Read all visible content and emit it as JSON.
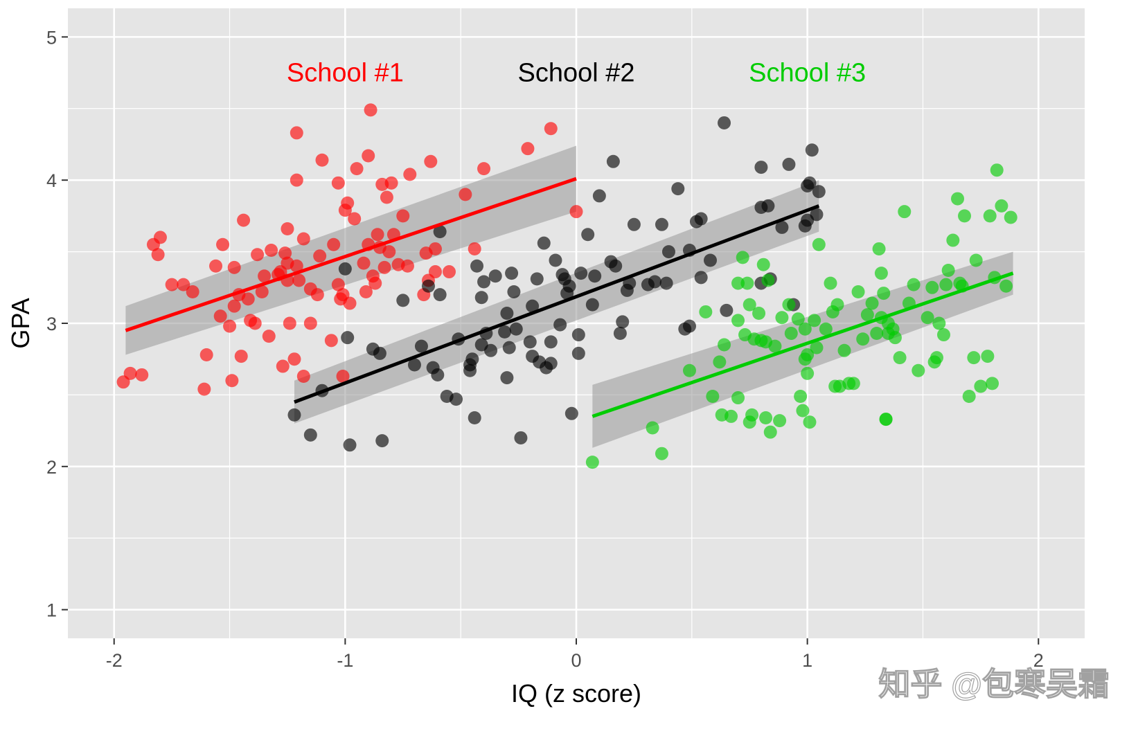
{
  "watermark": "知乎 @包寒吴霜",
  "chart_data": {
    "type": "scatter",
    "xlabel": "IQ (z score)",
    "ylabel": "GPA",
    "xlim": [
      -2.2,
      2.2
    ],
    "ylim": [
      0.8,
      5.2
    ],
    "x_ticks": [
      -2,
      -1,
      0,
      1,
      2
    ],
    "x_tick_labels": [
      "-2",
      "-1",
      "0",
      "1",
      "2"
    ],
    "y_ticks": [
      1,
      2,
      3,
      4,
      5
    ],
    "y_tick_labels": [
      "1",
      "2",
      "3",
      "4",
      "5"
    ],
    "grid": true,
    "colors": {
      "panel": "#e5e5e5",
      "grid": "#ffffff",
      "band": "#999999"
    },
    "series": [
      {
        "name": "School #1",
        "color": "#ff0000",
        "label_pos": [
          -1,
          4.69
        ],
        "fit": {
          "x": [
            -1.95,
            0.0
          ],
          "y": [
            2.95,
            4.01
          ],
          "se_lower": [
            2.78,
            3.78
          ],
          "se_upper": [
            3.12,
            4.24
          ]
        },
        "points": [
          [
            -1.96,
            2.59
          ],
          [
            -1.93,
            2.65
          ],
          [
            -1.88,
            2.64
          ],
          [
            -1.83,
            3.55
          ],
          [
            -1.81,
            3.48
          ],
          [
            -1.8,
            3.6
          ],
          [
            -1.75,
            3.27
          ],
          [
            -1.7,
            3.27
          ],
          [
            -1.66,
            3.22
          ],
          [
            -1.61,
            2.54
          ],
          [
            -1.6,
            2.78
          ],
          [
            -1.56,
            3.4
          ],
          [
            -1.54,
            3.05
          ],
          [
            -1.53,
            3.55
          ],
          [
            -1.5,
            2.98
          ],
          [
            -1.49,
            2.6
          ],
          [
            -1.48,
            3.12
          ],
          [
            -1.48,
            3.39
          ],
          [
            -1.46,
            3.2
          ],
          [
            -1.45,
            2.77
          ],
          [
            -1.44,
            3.72
          ],
          [
            -1.42,
            3.17
          ],
          [
            -1.41,
            3.02
          ],
          [
            -1.39,
            3.0
          ],
          [
            -1.38,
            3.48
          ],
          [
            -1.36,
            3.22
          ],
          [
            -1.35,
            3.33
          ],
          [
            -1.33,
            2.91
          ],
          [
            -1.32,
            3.51
          ],
          [
            -1.29,
            3.34
          ],
          [
            -1.28,
            3.36
          ],
          [
            -1.27,
            2.7
          ],
          [
            -1.26,
            3.49
          ],
          [
            -1.25,
            3.3
          ],
          [
            -1.25,
            3.42
          ],
          [
            -1.25,
            3.66
          ],
          [
            -1.24,
            3.0
          ],
          [
            -1.22,
            2.75
          ],
          [
            -1.21,
            3.4
          ],
          [
            -1.21,
            4.0
          ],
          [
            -1.21,
            4.33
          ],
          [
            -1.2,
            3.3
          ],
          [
            -1.18,
            3.59
          ],
          [
            -1.18,
            2.63
          ],
          [
            -1.15,
            3.24
          ],
          [
            -1.15,
            3.0
          ],
          [
            -1.12,
            3.2
          ],
          [
            -1.11,
            3.47
          ],
          [
            -1.1,
            4.14
          ],
          [
            -1.06,
            2.88
          ],
          [
            -1.05,
            3.55
          ],
          [
            -1.03,
            3.27
          ],
          [
            -1.03,
            3.98
          ],
          [
            -1.02,
            3.17
          ],
          [
            -1.01,
            3.2
          ],
          [
            -1.01,
            2.63
          ],
          [
            -1.0,
            3.79
          ],
          [
            -0.99,
            3.84
          ],
          [
            -0.98,
            3.14
          ],
          [
            -0.96,
            3.73
          ],
          [
            -0.95,
            4.08
          ],
          [
            -0.92,
            3.42
          ],
          [
            -0.91,
            3.22
          ],
          [
            -0.9,
            3.55
          ],
          [
            -0.9,
            4.17
          ],
          [
            -0.89,
            4.49
          ],
          [
            -0.88,
            3.33
          ],
          [
            -0.87,
            3.28
          ],
          [
            -0.86,
            3.62
          ],
          [
            -0.85,
            3.53
          ],
          [
            -0.84,
            3.97
          ],
          [
            -0.83,
            3.39
          ],
          [
            -0.82,
            3.88
          ],
          [
            -0.81,
            3.5
          ],
          [
            -0.8,
            3.98
          ],
          [
            -0.79,
            3.62
          ],
          [
            -0.77,
            3.41
          ],
          [
            -0.75,
            3.75
          ],
          [
            -0.73,
            3.4
          ],
          [
            -0.72,
            4.04
          ],
          [
            -0.66,
            3.2
          ],
          [
            -0.65,
            3.49
          ],
          [
            -0.64,
            3.3
          ],
          [
            -0.63,
            4.13
          ],
          [
            -0.61,
            3.36
          ],
          [
            -0.61,
            3.52
          ],
          [
            -0.55,
            3.36
          ],
          [
            -0.48,
            3.9
          ],
          [
            -0.44,
            3.52
          ],
          [
            -0.4,
            4.08
          ],
          [
            -0.21,
            4.22
          ],
          [
            -0.11,
            4.36
          ],
          [
            0.0,
            3.78
          ]
        ]
      },
      {
        "name": "School #2",
        "color": "#000000",
        "label_pos": [
          0,
          4.69
        ],
        "fit": {
          "x": [
            -1.22,
            1.05
          ],
          "y": [
            2.45,
            3.82
          ],
          "se_lower": [
            2.3,
            3.64
          ],
          "se_upper": [
            2.6,
            4.0
          ]
        },
        "points": [
          [
            -1.22,
            2.36
          ],
          [
            -1.15,
            2.22
          ],
          [
            -1.1,
            2.53
          ],
          [
            -1.0,
            3.38
          ],
          [
            -0.99,
            2.9
          ],
          [
            -0.98,
            2.15
          ],
          [
            -0.88,
            2.82
          ],
          [
            -0.85,
            2.79
          ],
          [
            -0.84,
            2.18
          ],
          [
            -0.75,
            3.16
          ],
          [
            -0.7,
            2.71
          ],
          [
            -0.67,
            2.84
          ],
          [
            -0.64,
            3.26
          ],
          [
            -0.62,
            2.69
          ],
          [
            -0.6,
            2.64
          ],
          [
            -0.59,
            3.64
          ],
          [
            -0.59,
            3.2
          ],
          [
            -0.56,
            2.49
          ],
          [
            -0.52,
            2.47
          ],
          [
            -0.51,
            2.89
          ],
          [
            -0.46,
            2.71
          ],
          [
            -0.46,
            2.67
          ],
          [
            -0.45,
            2.75
          ],
          [
            -0.44,
            2.34
          ],
          [
            -0.43,
            3.4
          ],
          [
            -0.41,
            2.85
          ],
          [
            -0.41,
            3.18
          ],
          [
            -0.4,
            3.29
          ],
          [
            -0.39,
            2.93
          ],
          [
            -0.37,
            2.81
          ],
          [
            -0.35,
            3.33
          ],
          [
            -0.31,
            2.94
          ],
          [
            -0.3,
            3.07
          ],
          [
            -0.3,
            2.62
          ],
          [
            -0.29,
            2.83
          ],
          [
            -0.28,
            3.35
          ],
          [
            -0.27,
            3.22
          ],
          [
            -0.26,
            2.96
          ],
          [
            -0.24,
            2.2
          ],
          [
            -0.2,
            2.87
          ],
          [
            -0.19,
            2.77
          ],
          [
            -0.19,
            3.12
          ],
          [
            -0.17,
            3.31
          ],
          [
            -0.16,
            2.73
          ],
          [
            -0.14,
            3.56
          ],
          [
            -0.13,
            2.69
          ],
          [
            -0.11,
            2.72
          ],
          [
            -0.11,
            2.87
          ],
          [
            -0.09,
            3.44
          ],
          [
            -0.07,
            2.99
          ],
          [
            -0.06,
            3.34
          ],
          [
            -0.05,
            3.31
          ],
          [
            -0.04,
            3.21
          ],
          [
            -0.03,
            3.26
          ],
          [
            -0.02,
            2.37
          ],
          [
            0.01,
            2.79
          ],
          [
            0.01,
            2.92
          ],
          [
            0.02,
            3.35
          ],
          [
            0.05,
            3.62
          ],
          [
            0.07,
            3.13
          ],
          [
            0.08,
            3.33
          ],
          [
            0.1,
            3.89
          ],
          [
            0.15,
            3.43
          ],
          [
            0.16,
            4.13
          ],
          [
            0.17,
            3.4
          ],
          [
            0.19,
            2.93
          ],
          [
            0.2,
            3.01
          ],
          [
            0.22,
            3.23
          ],
          [
            0.23,
            3.28
          ],
          [
            0.25,
            3.69
          ],
          [
            0.31,
            3.27
          ],
          [
            0.34,
            3.29
          ],
          [
            0.37,
            3.69
          ],
          [
            0.39,
            3.28
          ],
          [
            0.4,
            3.5
          ],
          [
            0.44,
            3.94
          ],
          [
            0.47,
            2.96
          ],
          [
            0.49,
            2.98
          ],
          [
            0.49,
            3.51
          ],
          [
            0.52,
            3.71
          ],
          [
            0.54,
            3.73
          ],
          [
            0.54,
            3.32
          ],
          [
            0.58,
            3.44
          ],
          [
            0.64,
            4.4
          ],
          [
            0.65,
            3.09
          ],
          [
            0.8,
            3.81
          ],
          [
            0.8,
            4.09
          ],
          [
            0.8,
            3.28
          ],
          [
            0.83,
            3.82
          ],
          [
            0.84,
            3.31
          ],
          [
            0.89,
            3.67
          ],
          [
            0.92,
            4.11
          ],
          [
            0.94,
            3.13
          ],
          [
            0.99,
            3.68
          ],
          [
            1.0,
            3.96
          ],
          [
            1.0,
            3.72
          ],
          [
            1.01,
            3.98
          ],
          [
            1.02,
            4.21
          ],
          [
            1.04,
            3.76
          ],
          [
            1.05,
            3.92
          ]
        ]
      },
      {
        "name": "School #3",
        "color": "#00cc00",
        "label_pos": [
          1,
          4.69
        ],
        "fit": {
          "x": [
            0.07,
            1.89
          ],
          "y": [
            2.35,
            3.35
          ],
          "se_lower": [
            2.13,
            3.2
          ],
          "se_upper": [
            2.57,
            3.5
          ]
        },
        "points": [
          [
            0.07,
            2.03
          ],
          [
            0.33,
            2.27
          ],
          [
            0.37,
            2.09
          ],
          [
            0.49,
            2.67
          ],
          [
            0.56,
            3.08
          ],
          [
            0.59,
            2.49
          ],
          [
            0.62,
            2.73
          ],
          [
            0.63,
            2.36
          ],
          [
            0.64,
            2.85
          ],
          [
            0.67,
            2.35
          ],
          [
            0.7,
            2.48
          ],
          [
            0.7,
            3.28
          ],
          [
            0.7,
            3.02
          ],
          [
            0.72,
            3.46
          ],
          [
            0.73,
            2.92
          ],
          [
            0.74,
            3.28
          ],
          [
            0.75,
            2.31
          ],
          [
            0.75,
            3.13
          ],
          [
            0.76,
            2.36
          ],
          [
            0.77,
            2.89
          ],
          [
            0.79,
            3.07
          ],
          [
            0.8,
            2.88
          ],
          [
            0.81,
            3.41
          ],
          [
            0.82,
            2.87
          ],
          [
            0.82,
            2.34
          ],
          [
            0.83,
            3.3
          ],
          [
            0.84,
            2.24
          ],
          [
            0.86,
            2.84
          ],
          [
            0.88,
            2.32
          ],
          [
            0.89,
            3.04
          ],
          [
            0.92,
            3.13
          ],
          [
            0.93,
            2.93
          ],
          [
            0.96,
            3.03
          ],
          [
            0.97,
            2.49
          ],
          [
            0.98,
            2.39
          ],
          [
            0.99,
            2.96
          ],
          [
            0.99,
            2.75
          ],
          [
            1.0,
            2.65
          ],
          [
            1.0,
            2.78
          ],
          [
            1.01,
            2.31
          ],
          [
            1.03,
            3.02
          ],
          [
            1.04,
            2.83
          ],
          [
            1.05,
            3.55
          ],
          [
            1.08,
            2.96
          ],
          [
            1.1,
            3.28
          ],
          [
            1.11,
            3.08
          ],
          [
            1.12,
            2.56
          ],
          [
            1.13,
            3.13
          ],
          [
            1.14,
            2.56
          ],
          [
            1.16,
            2.81
          ],
          [
            1.18,
            2.58
          ],
          [
            1.2,
            2.58
          ],
          [
            1.22,
            3.22
          ],
          [
            1.24,
            2.89
          ],
          [
            1.26,
            3.06
          ],
          [
            1.28,
            3.14
          ],
          [
            1.3,
            2.93
          ],
          [
            1.31,
            3.52
          ],
          [
            1.32,
            3.35
          ],
          [
            1.32,
            3.04
          ],
          [
            1.33,
            3.21
          ],
          [
            1.34,
            2.33
          ],
          [
            1.34,
            2.33
          ],
          [
            1.35,
            3.0
          ],
          [
            1.35,
            2.93
          ],
          [
            1.37,
            2.96
          ],
          [
            1.38,
            2.9
          ],
          [
            1.4,
            2.76
          ],
          [
            1.42,
            3.78
          ],
          [
            1.44,
            3.14
          ],
          [
            1.46,
            3.27
          ],
          [
            1.48,
            2.67
          ],
          [
            1.52,
            3.04
          ],
          [
            1.54,
            3.25
          ],
          [
            1.55,
            2.73
          ],
          [
            1.56,
            2.76
          ],
          [
            1.57,
            3.0
          ],
          [
            1.59,
            2.92
          ],
          [
            1.6,
            3.27
          ],
          [
            1.61,
            3.37
          ],
          [
            1.63,
            3.58
          ],
          [
            1.65,
            3.87
          ],
          [
            1.66,
            3.28
          ],
          [
            1.67,
            3.26
          ],
          [
            1.68,
            3.75
          ],
          [
            1.7,
            2.49
          ],
          [
            1.72,
            2.76
          ],
          [
            1.73,
            3.44
          ],
          [
            1.75,
            2.56
          ],
          [
            1.78,
            2.77
          ],
          [
            1.79,
            3.75
          ],
          [
            1.8,
            2.58
          ],
          [
            1.81,
            3.32
          ],
          [
            1.82,
            4.07
          ],
          [
            1.84,
            3.82
          ],
          [
            1.86,
            3.26
          ],
          [
            1.88,
            3.74
          ]
        ]
      }
    ]
  }
}
